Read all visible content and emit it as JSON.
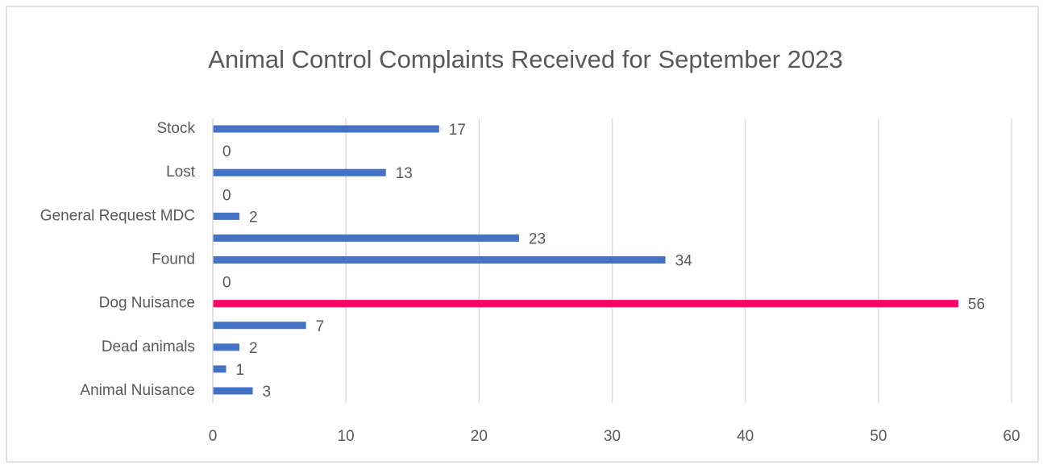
{
  "chart_data": {
    "type": "hbar",
    "title": "Animal Control Complaints Received for September 2023",
    "categories": [
      "Animal Nuisance",
      null,
      "Dead animals",
      null,
      "Dog Nuisance",
      null,
      "Found",
      null,
      "General Request MDC",
      null,
      "Lost",
      null,
      "Stock"
    ],
    "values": [
      3,
      1,
      2,
      7,
      56,
      0,
      34,
      23,
      2,
      0,
      13,
      0,
      17
    ],
    "colors": [
      "#4472c4",
      "#4472c4",
      "#4472c4",
      "#4472c4",
      "#ff0066",
      "#4472c4",
      "#4472c4",
      "#4472c4",
      "#4472c4",
      "#4472c4",
      "#4472c4",
      "#4472c4",
      "#4472c4"
    ],
    "xlim": [
      0,
      60
    ],
    "xticks": [
      0,
      10,
      20,
      30,
      40,
      50,
      60
    ],
    "grid": true
  }
}
